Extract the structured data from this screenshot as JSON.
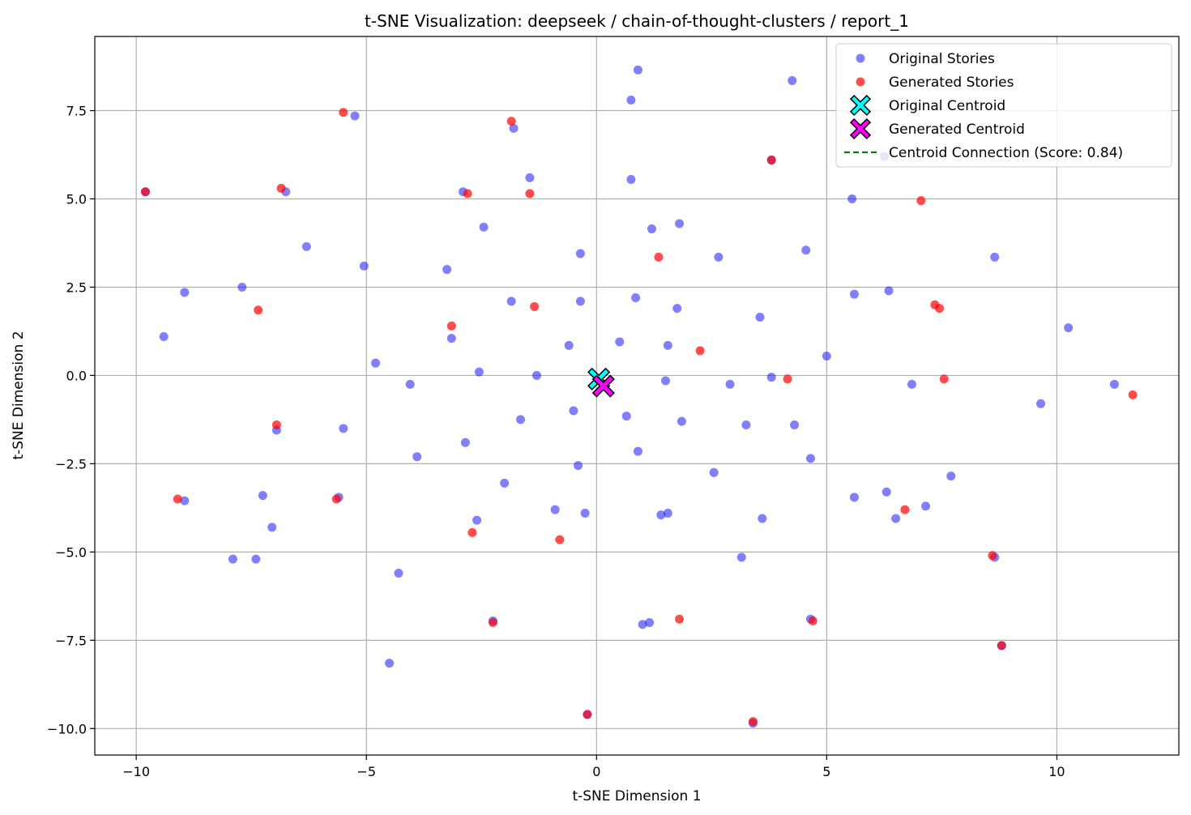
{
  "chart_data": {
    "type": "scatter",
    "title": "t-SNE Visualization: deepseek / chain-of-thought-clusters / report_1",
    "xlabel": "t-SNE Dimension 1",
    "ylabel": "t-SNE Dimension 2",
    "xlim": [
      -10.9,
      12.65
    ],
    "ylim": [
      -10.75,
      9.6
    ],
    "xticks": [
      -10,
      -5,
      0,
      5,
      10
    ],
    "xtick_labels": [
      "−10",
      "−5",
      "0",
      "5",
      "10"
    ],
    "yticks": [
      -10.0,
      -7.5,
      -5.0,
      -2.5,
      0.0,
      2.5,
      5.0,
      7.5
    ],
    "ytick_labels": [
      "−10.0",
      "−7.5",
      "−5.0",
      "−2.5",
      "0.0",
      "2.5",
      "5.0",
      "7.5"
    ],
    "grid": true,
    "legend_position": "top-right",
    "series": [
      {
        "name": "Original Stories",
        "color": "#0000ff",
        "alpha": 0.5,
        "marker": "circle",
        "points": [
          [
            0.9,
            8.65
          ],
          [
            0.75,
            7.8
          ],
          [
            4.25,
            8.35
          ],
          [
            -5.25,
            7.35
          ],
          [
            -1.8,
            7.0
          ],
          [
            6.25,
            6.2
          ],
          [
            3.8,
            6.1
          ],
          [
            -1.45,
            5.6
          ],
          [
            0.75,
            5.55
          ],
          [
            -2.9,
            5.2
          ],
          [
            -6.75,
            5.2
          ],
          [
            -9.8,
            5.2
          ],
          [
            5.55,
            5.0
          ],
          [
            1.2,
            4.15
          ],
          [
            1.8,
            4.3
          ],
          [
            -2.45,
            4.2
          ],
          [
            -6.3,
            3.65
          ],
          [
            4.55,
            3.55
          ],
          [
            -0.35,
            3.45
          ],
          [
            2.65,
            3.35
          ],
          [
            8.65,
            3.35
          ],
          [
            -5.05,
            3.1
          ],
          [
            -3.25,
            3.0
          ],
          [
            -7.7,
            2.5
          ],
          [
            -8.95,
            2.35
          ],
          [
            5.6,
            2.3
          ],
          [
            6.35,
            2.4
          ],
          [
            0.85,
            2.2
          ],
          [
            -1.85,
            2.1
          ],
          [
            -0.35,
            2.1
          ],
          [
            1.75,
            1.9
          ],
          [
            3.55,
            1.65
          ],
          [
            10.25,
            1.35
          ],
          [
            -9.4,
            1.1
          ],
          [
            -3.15,
            1.05
          ],
          [
            0.5,
            0.95
          ],
          [
            1.55,
            0.85
          ],
          [
            -0.6,
            0.85
          ],
          [
            5.0,
            0.55
          ],
          [
            -4.8,
            0.35
          ],
          [
            -2.55,
            0.1
          ],
          [
            -1.3,
            0.0
          ],
          [
            3.8,
            -0.05
          ],
          [
            1.5,
            -0.15
          ],
          [
            -4.05,
            -0.25
          ],
          [
            2.9,
            -0.25
          ],
          [
            6.85,
            -0.25
          ],
          [
            11.25,
            -0.25
          ],
          [
            9.65,
            -0.8
          ],
          [
            -0.5,
            -1.0
          ],
          [
            0.65,
            -1.15
          ],
          [
            -1.65,
            -1.25
          ],
          [
            1.85,
            -1.3
          ],
          [
            3.25,
            -1.4
          ],
          [
            4.3,
            -1.4
          ],
          [
            -5.5,
            -1.5
          ],
          [
            -6.95,
            -1.55
          ],
          [
            -2.85,
            -1.9
          ],
          [
            0.9,
            -2.15
          ],
          [
            -3.9,
            -2.3
          ],
          [
            4.65,
            -2.35
          ],
          [
            -0.4,
            -2.55
          ],
          [
            2.55,
            -2.75
          ],
          [
            7.7,
            -2.85
          ],
          [
            -2.0,
            -3.05
          ],
          [
            -7.25,
            -3.4
          ],
          [
            -5.6,
            -3.45
          ],
          [
            -8.95,
            -3.55
          ],
          [
            5.6,
            -3.45
          ],
          [
            6.3,
            -3.3
          ],
          [
            7.15,
            -3.7
          ],
          [
            -0.9,
            -3.8
          ],
          [
            -0.25,
            -3.9
          ],
          [
            1.55,
            -3.9
          ],
          [
            1.4,
            -3.95
          ],
          [
            -2.6,
            -4.1
          ],
          [
            3.6,
            -4.05
          ],
          [
            6.5,
            -4.05
          ],
          [
            -7.05,
            -4.3
          ],
          [
            -7.9,
            -5.2
          ],
          [
            -7.4,
            -5.2
          ],
          [
            3.15,
            -5.15
          ],
          [
            8.65,
            -5.15
          ],
          [
            -4.3,
            -5.6
          ],
          [
            -2.25,
            -6.95
          ],
          [
            4.65,
            -6.9
          ],
          [
            1.15,
            -7.0
          ],
          [
            1.0,
            -7.05
          ],
          [
            -4.5,
            -8.15
          ],
          [
            8.8,
            -7.65
          ],
          [
            -0.2,
            -9.6
          ],
          [
            3.4,
            -9.85
          ]
        ]
      },
      {
        "name": "Generated Stories",
        "color": "#ff0000",
        "alpha": 0.7,
        "marker": "circle",
        "points": [
          [
            -5.5,
            7.45
          ],
          [
            -1.85,
            7.2
          ],
          [
            3.8,
            6.1
          ],
          [
            -9.8,
            5.2
          ],
          [
            -6.85,
            5.3
          ],
          [
            -2.8,
            5.15
          ],
          [
            -1.45,
            5.15
          ],
          [
            7.05,
            4.95
          ],
          [
            1.35,
            3.35
          ],
          [
            7.35,
            2.0
          ],
          [
            7.45,
            1.9
          ],
          [
            -7.35,
            1.85
          ],
          [
            -1.35,
            1.95
          ],
          [
            -3.15,
            1.4
          ],
          [
            2.25,
            0.7
          ],
          [
            4.15,
            -0.1
          ],
          [
            7.55,
            -0.1
          ],
          [
            11.65,
            -0.55
          ],
          [
            -6.95,
            -1.4
          ],
          [
            -9.1,
            -3.5
          ],
          [
            -5.65,
            -3.5
          ],
          [
            6.7,
            -3.8
          ],
          [
            -2.7,
            -4.45
          ],
          [
            -0.8,
            -4.65
          ],
          [
            8.6,
            -5.1
          ],
          [
            -2.25,
            -7.0
          ],
          [
            1.8,
            -6.9
          ],
          [
            4.7,
            -6.95
          ],
          [
            8.8,
            -7.65
          ],
          [
            -0.2,
            -9.6
          ],
          [
            3.4,
            -9.8
          ]
        ]
      }
    ],
    "centroids": [
      {
        "name": "Original Centroid",
        "x": 0.05,
        "y": -0.1,
        "color": "#00ffff",
        "marker": "X"
      },
      {
        "name": "Generated Centroid",
        "x": 0.15,
        "y": -0.3,
        "color": "#ff00ff",
        "marker": "X"
      }
    ],
    "connection": {
      "name": "Centroid Connection (Score: 0.84)",
      "color": "#008000",
      "style": "dashed"
    }
  }
}
